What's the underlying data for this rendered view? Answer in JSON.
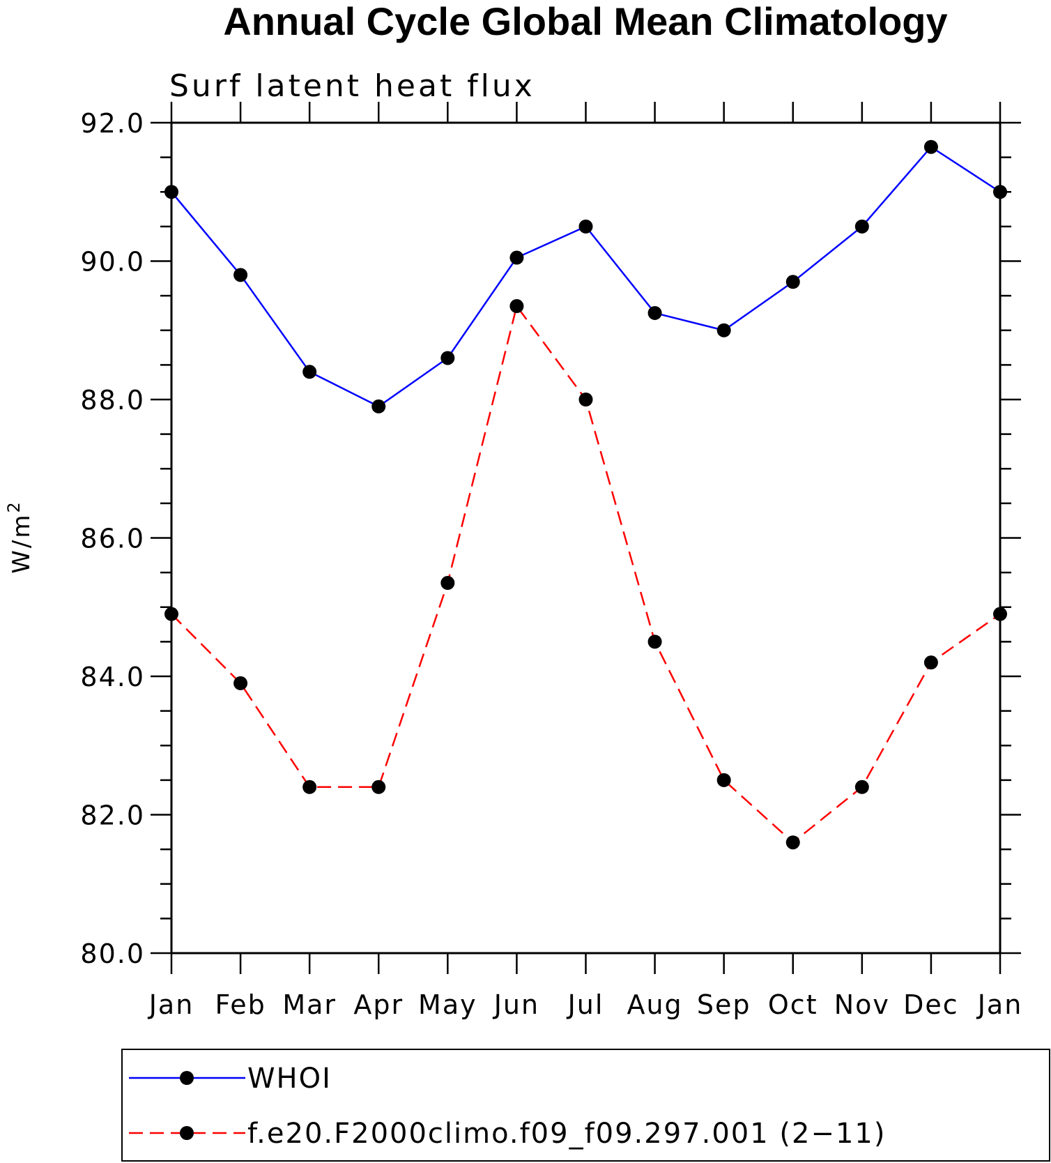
{
  "chart_data": {
    "type": "line",
    "title": "Annual Cycle Global Mean Climatology",
    "subtitle": "Surf latent heat flux",
    "ylabel": "W/m",
    "ylabel_superscript": "2",
    "xlabel": "",
    "categories": [
      "Jan",
      "Feb",
      "Mar",
      "Apr",
      "May",
      "Jun",
      "Jul",
      "Aug",
      "Sep",
      "Oct",
      "Nov",
      "Dec",
      "Jan"
    ],
    "ylim": [
      80.0,
      92.0
    ],
    "yticks": [
      "80.0",
      "82.0",
      "84.0",
      "86.0",
      "88.0",
      "90.0",
      "92.0"
    ],
    "grid": false,
    "legend_position": "bottom",
    "series": [
      {
        "name": "WHOI",
        "color": "#0000ff",
        "line_style": "solid",
        "marker": "filled-circle",
        "values": [
          91.0,
          89.8,
          88.4,
          87.9,
          88.6,
          90.05,
          90.5,
          89.25,
          89.0,
          89.7,
          90.5,
          91.65,
          91.0
        ]
      },
      {
        "name": "f.e20.F2000climo.f09_f09.297.001 (2−11)",
        "color": "#ff0000",
        "line_style": "dashed",
        "marker": "filled-circle",
        "values": [
          84.9,
          83.9,
          82.4,
          82.4,
          85.35,
          89.35,
          88.0,
          84.5,
          82.5,
          81.6,
          82.4,
          84.2,
          84.9
        ]
      }
    ]
  }
}
